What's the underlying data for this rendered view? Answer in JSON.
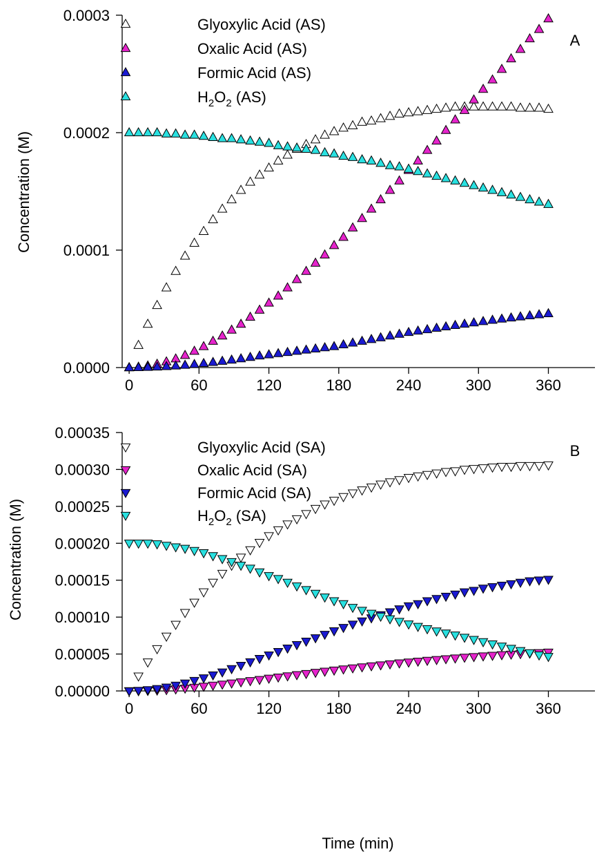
{
  "chart_data": [
    {
      "type": "scatter",
      "panel_label": "A",
      "ylabel": "Concentration (M)",
      "xlabel": "",
      "xlim": [
        -6,
        400
      ],
      "ylim": [
        0,
        0.0003
      ],
      "xticks": [
        0,
        60,
        120,
        180,
        240,
        300,
        360
      ],
      "xtick_labels": [
        "0",
        "60",
        "120",
        "180",
        "240",
        "300",
        "360"
      ],
      "yticks": [
        0,
        0.0001,
        0.0002,
        0.0003
      ],
      "ytick_labels": [
        "0.0000",
        "0.0001",
        "0.0002",
        "0.0003"
      ],
      "grid": false,
      "legend_position": "top-left",
      "x": [
        0,
        8,
        16,
        24,
        32,
        40,
        48,
        56,
        64,
        72,
        80,
        88,
        96,
        104,
        112,
        120,
        128,
        136,
        144,
        152,
        160,
        168,
        176,
        184,
        192,
        200,
        208,
        216,
        224,
        232,
        240,
        248,
        256,
        264,
        272,
        280,
        288,
        296,
        304,
        312,
        320,
        328,
        336,
        344,
        352,
        360
      ],
      "series": [
        {
          "name_main": "Glyoxylic Acid (AS)",
          "name_sub": "",
          "marker": "triangle-up",
          "color": "#ffffff",
          "values": [
            0.0,
            1.9e-05,
            3.7e-05,
            5.3e-05,
            6.8e-05,
            8.2e-05,
            9.5e-05,
            0.000106,
            0.000116,
            0.000126,
            0.000135,
            0.000143,
            0.000151,
            0.000158,
            0.000164,
            0.00017,
            0.000176,
            0.000181,
            0.000186,
            0.00019,
            0.000194,
            0.000198,
            0.000201,
            0.000204,
            0.000206,
            0.000209,
            0.00021,
            0.000212,
            0.000214,
            0.000216,
            0.000217,
            0.000218,
            0.000219,
            0.00022,
            0.000221,
            0.000222,
            0.000222,
            0.000222,
            0.000222,
            0.000222,
            0.000222,
            0.000222,
            0.000221,
            0.000221,
            0.000221,
            0.00022
          ]
        },
        {
          "name_main": "Oxalic Acid (AS)",
          "name_sub": "",
          "marker": "triangle-up",
          "color": "#e624cc",
          "values": [
            0.0,
            5e-07,
            1.5e-06,
            3e-06,
            5e-06,
            7.5e-06,
            1.05e-05,
            1.4e-05,
            1.8e-05,
            2.25e-05,
            2.7e-05,
            3.2e-05,
            3.7e-05,
            4.3e-05,
            4.9e-05,
            5.5e-05,
            6.1e-05,
            6.8e-05,
            7.5e-05,
            8.2e-05,
            8.9e-05,
            9.6e-05,
            0.000104,
            0.000111,
            0.000119,
            0.000127,
            0.000135,
            0.000143,
            0.000151,
            0.000159,
            0.000168,
            0.000176,
            0.000185,
            0.000193,
            0.000202,
            0.000211,
            0.000219,
            0.000228,
            0.000237,
            0.000245,
            0.000254,
            0.000263,
            0.000271,
            0.00028,
            0.000288,
            0.000297
          ]
        },
        {
          "name_main": "Formic Acid (AS)",
          "name_sub": "",
          "marker": "triangle-up",
          "color": "#1a1ad1",
          "values": [
            0.0,
            1e-07,
            3e-07,
            6e-07,
            1e-06,
            1.5e-06,
            2.1e-06,
            2.8e-06,
            3.6e-06,
            4.5e-06,
            5.5e-06,
            6.5e-06,
            7.6e-06,
            8.8e-06,
            1e-05,
            1.1e-05,
            1.2e-05,
            1.3e-05,
            1.4e-05,
            1.5e-05,
            1.6e-05,
            1.7e-05,
            1.8e-05,
            1.95e-05,
            2.1e-05,
            2.25e-05,
            2.4e-05,
            2.55e-05,
            2.7e-05,
            2.85e-05,
            3e-05,
            3.12e-05,
            3.24e-05,
            3.36e-05,
            3.48e-05,
            3.6e-05,
            3.71e-05,
            3.82e-05,
            3.93e-05,
            4.04e-05,
            4.14e-05,
            4.24e-05,
            4.33e-05,
            4.42e-05,
            4.51e-05,
            4.6e-05
          ]
        },
        {
          "name_main": "H",
          "name_sub": "2",
          "name_main2": "O",
          "name_sub2": "2",
          "name_tail": " (AS)",
          "marker": "triangle-up",
          "color": "#29e0e0",
          "values": [
            0.0002,
            0.0002,
            0.0002,
            0.0002,
            0.000199,
            0.000199,
            0.000198,
            0.000198,
            0.000197,
            0.000196,
            0.000195,
            0.000195,
            0.000194,
            0.000193,
            0.000192,
            0.000191,
            0.000189,
            0.000188,
            0.000187,
            0.000186,
            0.000185,
            0.000183,
            0.000182,
            0.00018,
            0.000179,
            0.000177,
            0.000176,
            0.000174,
            0.000172,
            0.000171,
            0.000169,
            0.000167,
            0.000165,
            0.000163,
            0.000161,
            0.000159,
            0.000157,
            0.000155,
            0.000153,
            0.000151,
            0.000149,
            0.000147,
            0.000145,
            0.000143,
            0.000141,
            0.000139
          ]
        }
      ]
    },
    {
      "type": "scatter",
      "panel_label": "B",
      "ylabel": "Concentration (M)",
      "xlabel": "Time (min)",
      "xlim": [
        -6,
        400
      ],
      "ylim": [
        0,
        0.00035
      ],
      "xticks": [
        0,
        60,
        120,
        180,
        240,
        300,
        360
      ],
      "xtick_labels": [
        "0",
        "60",
        "120",
        "180",
        "240",
        "300",
        "360"
      ],
      "yticks": [
        0,
        5e-05,
        0.0001,
        0.00015,
        0.0002,
        0.00025,
        0.0003,
        0.00035
      ],
      "ytick_labels": [
        "0.00000",
        "0.00005",
        "0.00010",
        "0.00015",
        "0.00020",
        "0.00025",
        "0.00030",
        "0.00035"
      ],
      "grid": false,
      "legend_position": "top-left",
      "x": [
        0,
        8,
        16,
        24,
        32,
        40,
        48,
        56,
        64,
        72,
        80,
        88,
        96,
        104,
        112,
        120,
        128,
        136,
        144,
        152,
        160,
        168,
        176,
        184,
        192,
        200,
        208,
        216,
        224,
        232,
        240,
        248,
        256,
        264,
        272,
        280,
        288,
        296,
        304,
        312,
        320,
        328,
        336,
        344,
        352,
        360
      ],
      "series": [
        {
          "name_main": "Glyoxylic Acid (SA)",
          "name_sub": "",
          "marker": "triangle-down",
          "color": "#ffffff",
          "values": [
            0.0,
            2e-05,
            3.9e-05,
            5.7e-05,
            7.4e-05,
            9e-05,
            0.000106,
            0.00012,
            0.000134,
            0.000147,
            0.000159,
            0.00017,
            0.000181,
            0.000191,
            0.000201,
            0.00021,
            0.000218,
            0.000226,
            0.000233,
            0.00024,
            0.000247,
            0.000253,
            0.000258,
            0.000263,
            0.000268,
            0.000272,
            0.000276,
            0.00028,
            0.000283,
            0.000286,
            0.000289,
            0.000291,
            0.000293,
            0.000295,
            0.000297,
            0.000298,
            0.0003,
            0.000301,
            0.000302,
            0.000303,
            0.000304,
            0.000304,
            0.000305,
            0.000305,
            0.000305,
            0.000306
          ]
        },
        {
          "name_main": "Oxalic Acid (SA)",
          "name_sub": "",
          "marker": "triangle-down",
          "color": "#e624cc",
          "values": [
            0.0,
            1e-07,
            4e-07,
            9e-07,
            1.6e-06,
            2.5e-06,
            3.6e-06,
            4.8e-06,
            6.1e-06,
            7.5e-06,
            9e-06,
            1.05e-05,
            1.21e-05,
            1.37e-05,
            1.53e-05,
            1.7e-05,
            1.86e-05,
            2.02e-05,
            2.18e-05,
            2.34e-05,
            2.5e-05,
            2.65e-05,
            2.8e-05,
            2.95e-05,
            3.1e-05,
            3.24e-05,
            3.38e-05,
            3.51e-05,
            3.64e-05,
            3.77e-05,
            3.89e-05,
            4.01e-05,
            4.12e-05,
            4.23e-05,
            4.34e-05,
            4.44e-05,
            4.54e-05,
            4.63e-05,
            4.72e-05,
            4.8e-05,
            4.88e-05,
            4.96e-05,
            5.03e-05,
            5.1e-05,
            5.17e-05,
            5.23e-05
          ]
        },
        {
          "name_main": "Formic Acid (SA)",
          "name_sub": "",
          "marker": "triangle-down",
          "color": "#1a1ad1",
          "values": [
            0.0,
            5e-07,
            1.5e-06,
            3e-06,
            5e-06,
            7.5e-06,
            1.05e-05,
            1.4e-05,
            1.75e-05,
            2.15e-05,
            2.55e-05,
            3e-05,
            3.45e-05,
            3.92e-05,
            4.38e-05,
            4.85e-05,
            5.32e-05,
            5.78e-05,
            6.25e-05,
            6.72e-05,
            7.18e-05,
            7.65e-05,
            8.12e-05,
            8.58e-05,
            9.03e-05,
            9.46e-05,
            9.88e-05,
            0.000103,
            0.000107,
            0.000111,
            0.000115,
            0.000118,
            0.000122,
            0.000125,
            0.000128,
            0.000131,
            0.000134,
            0.000136,
            0.000139,
            0.000141,
            0.000143,
            0.000145,
            0.000147,
            0.000149,
            0.00015,
            0.000151
          ]
        },
        {
          "name_main": "H",
          "name_sub": "2",
          "name_main2": "O",
          "name_sub2": "2",
          "name_tail": " (SA)",
          "marker": "triangle-down",
          "color": "#29e0e0",
          "values": [
            0.0002,
            0.0002,
            0.0002,
            0.000199,
            0.000197,
            0.000195,
            0.000193,
            0.00019,
            0.000187,
            0.000183,
            0.000179,
            0.000175,
            0.00017,
            0.000166,
            0.000161,
            0.000156,
            0.000152,
            0.000147,
            0.000142,
            0.000137,
            0.000132,
            0.000127,
            0.000122,
            0.000118,
            0.000113,
            0.000109,
            0.000105,
            0.000101,
            9.75e-05,
            9.4e-05,
            9.05e-05,
            8.72e-05,
            8.4e-05,
            8.1e-05,
            7.82e-05,
            7.55e-05,
            7.25e-05,
            6.95e-05,
            6.65e-05,
            6.35e-05,
            6.05e-05,
            5.75e-05,
            5.45e-05,
            5.15e-05,
            4.85e-05,
            4.65e-05
          ]
        }
      ]
    }
  ]
}
